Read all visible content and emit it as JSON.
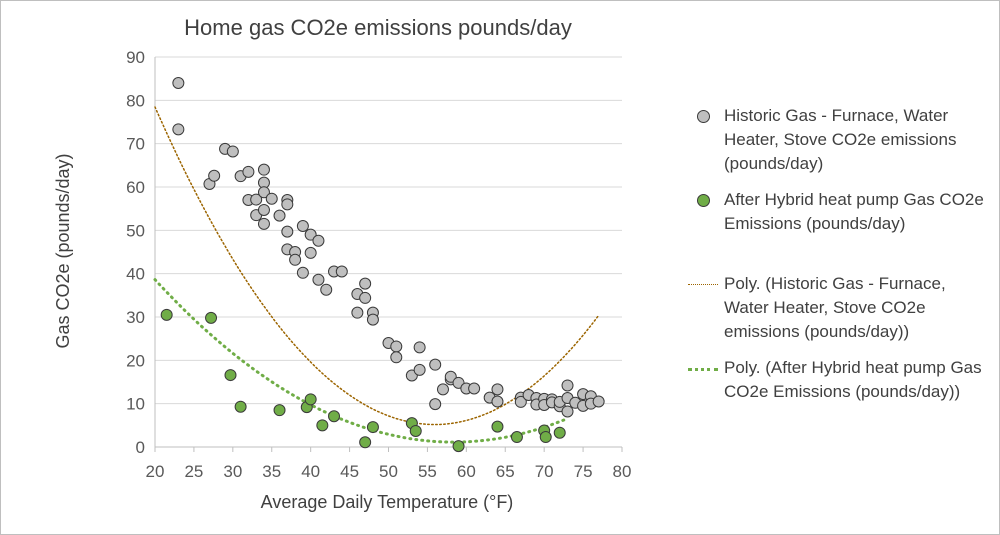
{
  "chart_data": {
    "type": "scatter",
    "title": "Home gas CO2e emissions pounds/day",
    "xlabel": "Average Daily Temperature (°F)",
    "ylabel": "Gas CO2e (pounds/day)",
    "xlim": [
      20,
      80
    ],
    "ylim": [
      0,
      90
    ],
    "xticks": [
      20,
      25,
      30,
      35,
      40,
      45,
      50,
      55,
      60,
      65,
      70,
      75,
      80
    ],
    "yticks": [
      0,
      10,
      20,
      30,
      40,
      50,
      60,
      70,
      80,
      90
    ],
    "grid": "horizontal",
    "legend_position": "right",
    "series": [
      {
        "name": "Historic Gas - Furnace, Water Heater, Stove CO2e emissions (pounds/day)",
        "kind": "scatter",
        "color": "#bfbfbf",
        "edge": "#3a3a3a",
        "points": [
          [
            23,
            84
          ],
          [
            23,
            73.3
          ],
          [
            27,
            60.7
          ],
          [
            27.6,
            62.6
          ],
          [
            29,
            68.8
          ],
          [
            30,
            68.2
          ],
          [
            31,
            62.5
          ],
          [
            32,
            63.5
          ],
          [
            32,
            57
          ],
          [
            33,
            57.1
          ],
          [
            33,
            53.5
          ],
          [
            34,
            64
          ],
          [
            34,
            61
          ],
          [
            34,
            58.8
          ],
          [
            34,
            54.7
          ],
          [
            34,
            51.5
          ],
          [
            35,
            57.3
          ],
          [
            36,
            53.4
          ],
          [
            37,
            57
          ],
          [
            37,
            56
          ],
          [
            37,
            49.7
          ],
          [
            37,
            45.6
          ],
          [
            38,
            45
          ],
          [
            38,
            43.2
          ],
          [
            39,
            51
          ],
          [
            39,
            40.2
          ],
          [
            40,
            49
          ],
          [
            40,
            44.8
          ],
          [
            41,
            47.6
          ],
          [
            41,
            38.6
          ],
          [
            42,
            36.3
          ],
          [
            43,
            40.5
          ],
          [
            44,
            40.5
          ],
          [
            46,
            35.3
          ],
          [
            46,
            31
          ],
          [
            47,
            37.7
          ],
          [
            47,
            34.4
          ],
          [
            48,
            31
          ],
          [
            48,
            29.4
          ],
          [
            50,
            24
          ],
          [
            51,
            23.2
          ],
          [
            51,
            20.7
          ],
          [
            53,
            16.5
          ],
          [
            54,
            23
          ],
          [
            54,
            17.8
          ],
          [
            56,
            19
          ],
          [
            56,
            9.9
          ],
          [
            57,
            13.3
          ],
          [
            58,
            15.6
          ],
          [
            58,
            16.2
          ],
          [
            59,
            14.8
          ],
          [
            60,
            13.5
          ],
          [
            61,
            13.5
          ],
          [
            63,
            11.4
          ],
          [
            64,
            13.3
          ],
          [
            64,
            10.5
          ],
          [
            67,
            11.4
          ],
          [
            67,
            10.4
          ],
          [
            68,
            12
          ],
          [
            69,
            11.3
          ],
          [
            69,
            9.8
          ],
          [
            70,
            11.1
          ],
          [
            70,
            9.7
          ],
          [
            71,
            11
          ],
          [
            71,
            10.3
          ],
          [
            72,
            9.4
          ],
          [
            72,
            10.4
          ],
          [
            73,
            14.2
          ],
          [
            73,
            11.3
          ],
          [
            73,
            8.2
          ],
          [
            74,
            10.2
          ],
          [
            75,
            12.2
          ],
          [
            75,
            9.5
          ],
          [
            76,
            11.7
          ],
          [
            76,
            10
          ],
          [
            77,
            10.5
          ]
        ]
      },
      {
        "name": "After Hybrid heat pump Gas CO2e Emissions (pounds/day)",
        "kind": "scatter",
        "color": "#70ad47",
        "edge": "#3a3a3a",
        "points": [
          [
            21.5,
            30.5
          ],
          [
            27.2,
            29.8
          ],
          [
            29.7,
            16.6
          ],
          [
            31,
            9.3
          ],
          [
            36,
            8.5
          ],
          [
            39.5,
            9.2
          ],
          [
            40,
            11
          ],
          [
            41.5,
            5
          ],
          [
            43,
            7.1
          ],
          [
            47,
            1.1
          ],
          [
            48,
            4.6
          ],
          [
            53,
            5.5
          ],
          [
            53.5,
            3.7
          ],
          [
            59,
            0.2
          ],
          [
            64,
            4.7
          ],
          [
            66.5,
            2.3
          ],
          [
            70,
            3.8
          ],
          [
            70.2,
            2.3
          ],
          [
            72,
            3.3
          ]
        ]
      },
      {
        "name": "Poly. (Historic Gas - Furnace, Water Heater, Stove CO2e emissions (pounds/day))",
        "kind": "trendline",
        "style": "dotted",
        "color": "#9c6500",
        "coefficients": [
          182.73,
          -6.3485,
          0.05675
        ],
        "x_range": [
          20,
          77
        ]
      },
      {
        "name": "Poly. (After Hybrid heat pump Gas CO2e Emissions (pounds/day))",
        "kind": "trendline",
        "style": "dotted",
        "color": "#70ad47",
        "coefficients": [
          87.87,
          -2.9715,
          0.02545
        ],
        "x_range": [
          20,
          73
        ]
      }
    ]
  }
}
